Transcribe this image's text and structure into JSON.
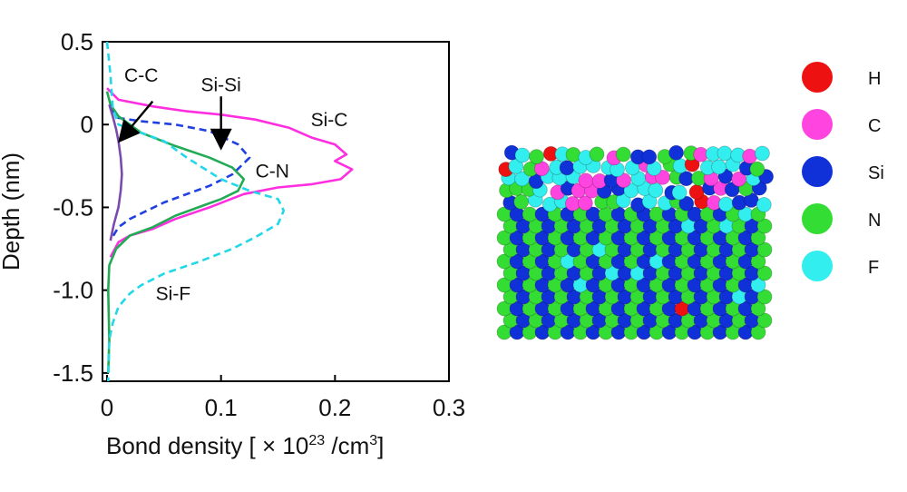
{
  "chart_data": {
    "type": "line",
    "xlabel": "Bond density [ × 10²³ /cm³]",
    "ylabel": "Depth (nm)",
    "xlim": [
      -0.004,
      0.3
    ],
    "ylim": [
      -1.55,
      0.5
    ],
    "xticks": [
      0,
      0.1,
      0.2,
      0.3
    ],
    "xtick_labels": [
      "0",
      "0.1",
      "0.2",
      "0.3"
    ],
    "yticks": [
      0.5,
      0,
      -0.5,
      -1.0,
      -1.5
    ],
    "ytick_labels": [
      "0.5",
      "0",
      "-0.5",
      "-1.0",
      "-1.5"
    ],
    "grid": false,
    "series": [
      {
        "name": "Si-C",
        "color": "#ff2ee0",
        "dash": "solid",
        "points": [
          [
            0.0,
            0.22
          ],
          [
            0.01,
            0.15
          ],
          [
            0.04,
            0.11
          ],
          [
            0.07,
            0.08
          ],
          [
            0.1,
            0.06
          ],
          [
            0.13,
            0.03
          ],
          [
            0.16,
            -0.02
          ],
          [
            0.18,
            -0.08
          ],
          [
            0.2,
            -0.12
          ],
          [
            0.21,
            -0.18
          ],
          [
            0.2,
            -0.22
          ],
          [
            0.215,
            -0.27
          ],
          [
            0.205,
            -0.33
          ],
          [
            0.18,
            -0.36
          ],
          [
            0.15,
            -0.38
          ],
          [
            0.12,
            -0.42
          ],
          [
            0.09,
            -0.5
          ],
          [
            0.06,
            -0.57
          ],
          [
            0.04,
            -0.63
          ],
          [
            0.02,
            -0.67
          ],
          [
            0.01,
            -0.71
          ],
          [
            0.003,
            -0.8
          ]
        ]
      },
      {
        "name": "Si-Si",
        "color": "#2040e0",
        "dash": "dashed",
        "points": [
          [
            0.003,
            0.1
          ],
          [
            0.01,
            0.04
          ],
          [
            0.03,
            0.02
          ],
          [
            0.06,
            0.0
          ],
          [
            0.09,
            -0.04
          ],
          [
            0.115,
            -0.12
          ],
          [
            0.125,
            -0.2
          ],
          [
            0.11,
            -0.3
          ],
          [
            0.09,
            -0.37
          ],
          [
            0.07,
            -0.42
          ],
          [
            0.05,
            -0.47
          ],
          [
            0.035,
            -0.52
          ],
          [
            0.02,
            -0.57
          ],
          [
            0.01,
            -0.62
          ],
          [
            0.003,
            -0.7
          ]
        ]
      },
      {
        "name": "C-N",
        "color": "#22aa55",
        "dash": "solid",
        "points": [
          [
            0.0,
            0.2
          ],
          [
            0.003,
            0.12
          ],
          [
            0.01,
            0.05
          ],
          [
            0.03,
            -0.05
          ],
          [
            0.06,
            -0.13
          ],
          [
            0.09,
            -0.2
          ],
          [
            0.11,
            -0.26
          ],
          [
            0.12,
            -0.33
          ],
          [
            0.115,
            -0.4
          ],
          [
            0.1,
            -0.45
          ],
          [
            0.08,
            -0.5
          ],
          [
            0.06,
            -0.55
          ],
          [
            0.04,
            -0.62
          ],
          [
            0.02,
            -0.67
          ],
          [
            0.008,
            -0.75
          ],
          [
            0.002,
            -0.85
          ],
          [
            0.001,
            -1.0
          ],
          [
            0.002,
            -1.3
          ],
          [
            0.001,
            -1.5
          ]
        ]
      },
      {
        "name": "Si-F",
        "color": "#22d8e8",
        "dash": "dashed",
        "points": [
          [
            0.0,
            0.5
          ],
          [
            0.003,
            0.3
          ],
          [
            0.005,
            0.1
          ],
          [
            0.01,
            0.0
          ],
          [
            0.03,
            -0.05
          ],
          [
            0.05,
            -0.1
          ],
          [
            0.07,
            -0.2
          ],
          [
            0.1,
            -0.33
          ],
          [
            0.125,
            -0.4
          ],
          [
            0.15,
            -0.45
          ],
          [
            0.155,
            -0.52
          ],
          [
            0.15,
            -0.6
          ],
          [
            0.13,
            -0.68
          ],
          [
            0.11,
            -0.75
          ],
          [
            0.08,
            -0.83
          ],
          [
            0.05,
            -0.9
          ],
          [
            0.03,
            -0.97
          ],
          [
            0.02,
            -1.02
          ],
          [
            0.01,
            -1.1
          ],
          [
            0.005,
            -1.2
          ],
          [
            0.002,
            -1.3
          ],
          [
            0.001,
            -1.55
          ]
        ]
      },
      {
        "name": "C-C",
        "color": "#7a4ab0",
        "dash": "solid",
        "points": [
          [
            0.002,
            0.12
          ],
          [
            0.005,
            0.05
          ],
          [
            0.008,
            -0.03
          ],
          [
            0.01,
            -0.1
          ],
          [
            0.012,
            -0.2
          ],
          [
            0.013,
            -0.3
          ],
          [
            0.012,
            -0.4
          ],
          [
            0.01,
            -0.5
          ],
          [
            0.006,
            -0.6
          ],
          [
            0.003,
            -0.7
          ]
        ]
      }
    ],
    "annotations": [
      {
        "text": "C-C",
        "x": 0.03,
        "y": 0.26
      },
      {
        "text": "Si-Si",
        "x": 0.1,
        "y": 0.2
      },
      {
        "text": "Si-C",
        "x": 0.195,
        "y": -0.01
      },
      {
        "text": "C-N",
        "x": 0.145,
        "y": -0.32
      },
      {
        "text": "Si-F",
        "x": 0.058,
        "y": -1.06
      }
    ],
    "arrows": [
      {
        "label": "C-C",
        "x1": 0.04,
        "y1": 0.14,
        "x2": 0.012,
        "y2": -0.09
      },
      {
        "label": "Si-Si",
        "x1": 0.1,
        "y1": 0.17,
        "x2": 0.1,
        "y2": -0.13
      }
    ]
  },
  "legend": {
    "items": [
      {
        "label": "H",
        "color": "#ee1111"
      },
      {
        "label": "C",
        "color": "#ff44e0"
      },
      {
        "label": "Si",
        "color": "#1030d8"
      },
      {
        "label": "N",
        "color": "#33dd33"
      },
      {
        "label": "F",
        "color": "#33eeee"
      }
    ]
  },
  "colors": {
    "H": "#ee1111",
    "C": "#ff44e0",
    "Si": "#1030d8",
    "N": "#33dd33",
    "F": "#33eeee"
  }
}
